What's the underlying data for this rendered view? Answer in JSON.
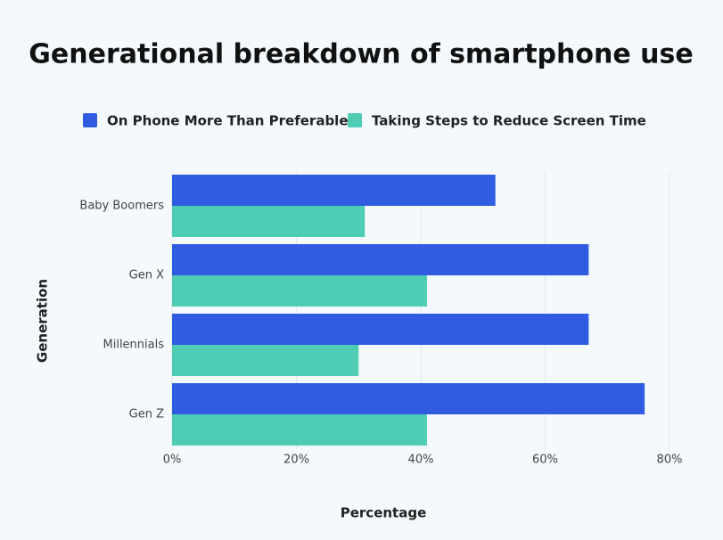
{
  "chart_data": {
    "type": "hbar",
    "title": "Generational breakdown of smartphone use",
    "x_label": "Percentage",
    "y_label": "Generation",
    "categories": [
      "Baby Boomers",
      "Gen X",
      "Millennials",
      "Gen Z"
    ],
    "series": [
      {
        "name": "On Phone More Than Preferable",
        "color": "#2f5ce0",
        "values": [
          52,
          67,
          67,
          76
        ]
      },
      {
        "name": "Taking Steps to Reduce Screen Time",
        "color": "#4fcdb4",
        "values": [
          31,
          41,
          30,
          41
        ]
      }
    ],
    "xlim": [
      0,
      80
    ],
    "xticks": [
      {
        "value": 0,
        "label": "0%"
      },
      {
        "value": 20,
        "label": "20%"
      },
      {
        "value": 40,
        "label": "40%"
      },
      {
        "value": 60,
        "label": "60%"
      },
      {
        "value": 80,
        "label": "80%"
      }
    ],
    "grid": true
  }
}
